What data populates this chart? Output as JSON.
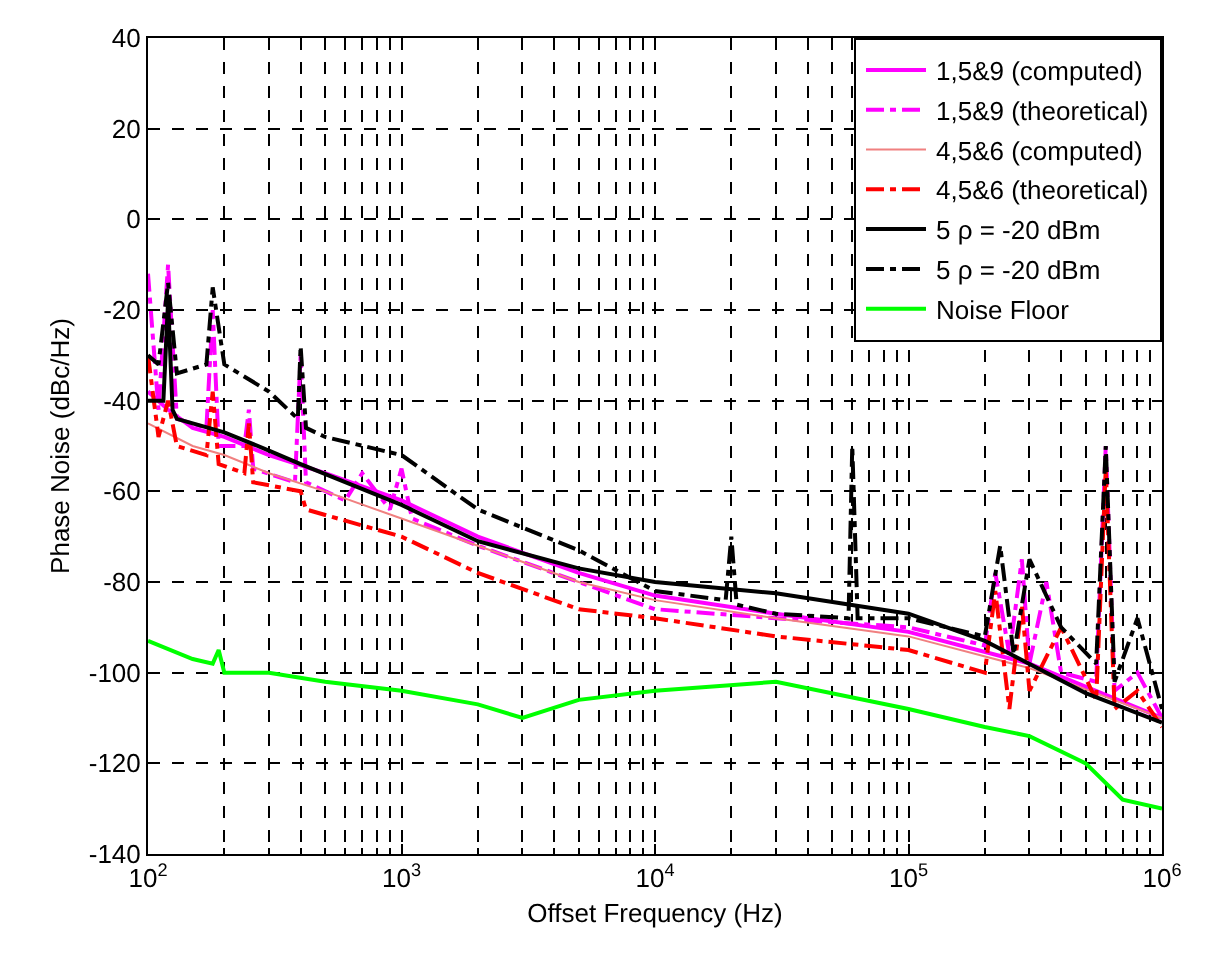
{
  "chart_data": {
    "type": "line",
    "xlabel": "Offset Frequency (Hz)",
    "ylabel": "Phase Noise (dBc/Hz)",
    "log": "x",
    "grid": true,
    "legend": "top right",
    "marker": "none",
    "xlim": [
      100,
      1000000
    ],
    "xticks": [
      {
        "value": 100,
        "label": "10$^{2}$"
      },
      {
        "value": 1000,
        "label": "10$^{3}$"
      },
      {
        "value": 10000,
        "label": "10$^{4}$"
      },
      {
        "value": 100000,
        "label": "10$^{5}$"
      },
      {
        "value": 1000000,
        "label": "10$^{6}$"
      }
    ],
    "ylim": [
      -140,
      40
    ],
    "yticks": [
      -140,
      -120,
      -100,
      -80,
      -60,
      -40,
      -20,
      0,
      20,
      40
    ],
    "series": [
      {
        "name": "1,5&9 (computed)",
        "color": "#ff00ff",
        "line_style": "solid",
        "x": [
          100,
          120,
          150,
          200,
          300,
          500,
          1000,
          2000,
          5000,
          10000,
          30000,
          100000,
          300000,
          1000000
        ],
        "values": [
          -38,
          -42,
          -46,
          -48,
          -52,
          -56,
          -62,
          -70,
          -78,
          -83,
          -87,
          -91,
          -98,
          -110
        ]
      },
      {
        "name": "1,5&9 (theoretical)",
        "color": "#ff00ff",
        "line_style": "dashdot",
        "x": [
          100,
          110,
          120,
          130,
          170,
          180,
          190,
          240,
          250,
          260,
          380,
          400,
          420,
          600,
          700,
          900,
          1000,
          1100,
          2000,
          5000,
          10000,
          30000,
          100000,
          200000,
          220000,
          250000,
          280000,
          300000,
          350000,
          400000,
          550000,
          600000,
          650000,
          800000,
          1000000
        ],
        "values": [
          -12,
          -42,
          -10,
          -44,
          -46,
          -20,
          -50,
          -50,
          -42,
          -55,
          -58,
          -30,
          -58,
          -62,
          -56,
          -64,
          -55,
          -66,
          -72,
          -80,
          -86,
          -88,
          -90,
          -94,
          -78,
          -96,
          -75,
          -98,
          -80,
          -100,
          -102,
          -50,
          -104,
          -100,
          -110
        ]
      },
      {
        "name": "4,5&6 (computed)",
        "color": "#f08080",
        "line_style": "solid",
        "x": [
          100,
          150,
          200,
          300,
          500,
          1000,
          2000,
          5000,
          10000,
          30000,
          100000,
          300000,
          1000000
        ],
        "values": [
          -45,
          -50,
          -52,
          -56,
          -60,
          -66,
          -72,
          -80,
          -84,
          -88,
          -92,
          -99,
          -110
        ]
      },
      {
        "name": "4,5&6 (theoretical)",
        "color": "#ff0000",
        "line_style": "dashdot",
        "x": [
          100,
          110,
          120,
          130,
          170,
          180,
          190,
          240,
          250,
          260,
          400,
          420,
          1000,
          2000,
          5000,
          10000,
          30000,
          100000,
          200000,
          220000,
          250000,
          280000,
          300000,
          400000,
          550000,
          600000,
          650000,
          800000,
          1000000
        ],
        "values": [
          -30,
          -48,
          -40,
          -50,
          -52,
          -38,
          -54,
          -56,
          -45,
          -58,
          -60,
          -64,
          -70,
          -78,
          -86,
          -88,
          -92,
          -95,
          -100,
          -82,
          -108,
          -85,
          -104,
          -90,
          -106,
          -55,
          -108,
          -104,
          -112
        ]
      },
      {
        "name": "5 ρ = -20 dBm",
        "color": "#000000",
        "line_style": "solid",
        "x": [
          100,
          115,
          120,
          125,
          130,
          200,
          300,
          400,
          1000,
          2000,
          5000,
          10000,
          30000,
          100000,
          200000,
          500000,
          1000000
        ],
        "values": [
          -40,
          -40,
          -18,
          -42,
          -44,
          -47,
          -51,
          -54,
          -63,
          -71,
          -77,
          -80,
          -82.5,
          -87,
          -93,
          -104.5,
          -111
        ]
      },
      {
        "name": "5 ρ = -20 dBm",
        "color": "#000000",
        "line_style": "dashdot",
        "x": [
          100,
          110,
          120,
          130,
          170,
          180,
          200,
          300,
          390,
          400,
          420,
          500,
          1000,
          2000,
          5000,
          10000,
          19000,
          20000,
          21000,
          30000,
          58000,
          60000,
          63000,
          100000,
          200000,
          230000,
          260000,
          300000,
          400000,
          550000,
          600000,
          650000,
          800000,
          1000000
        ],
        "values": [
          -30,
          -32,
          -14,
          -34,
          -32,
          -15,
          -32,
          -38,
          -44,
          -28,
          -46,
          -48,
          -52,
          -64,
          -73,
          -82,
          -84,
          -70,
          -85,
          -87,
          -88,
          -50,
          -88,
          -88,
          -92,
          -72,
          -96,
          -75,
          -90,
          -98,
          -50,
          -102,
          -88,
          -108
        ]
      },
      {
        "name": "Noise Floor",
        "color": "#00ff00",
        "line_style": "solid",
        "x": [
          100,
          150,
          180,
          190,
          200,
          300,
          500,
          1000,
          2000,
          3000,
          5000,
          10000,
          30000,
          100000,
          200000,
          300000,
          500000,
          700000,
          1000000
        ],
        "values": [
          -93,
          -97,
          -98,
          -95,
          -100,
          -100,
          -102,
          -104,
          -107,
          -110,
          -106,
          -104,
          -102,
          -108,
          -112,
          -114,
          -120,
          -128,
          -130
        ]
      }
    ]
  }
}
